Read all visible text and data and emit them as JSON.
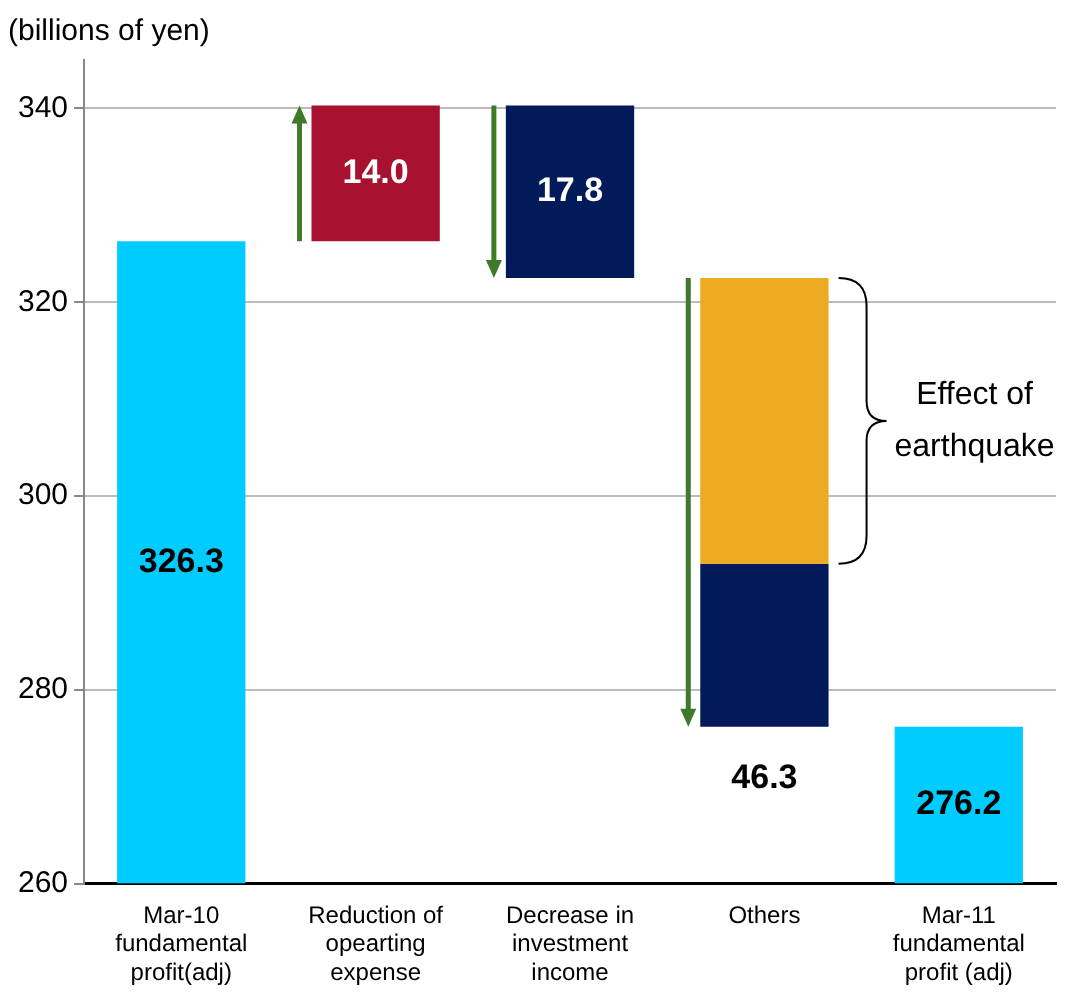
{
  "chart_data": {
    "type": "bar",
    "ylabel": "(billions of yen)",
    "categories": [
      "Mar-10\nfundamental\nprofit(adj)",
      "Reduction of\nopearting\nexpense",
      "Decrease in\ninvestment\nincome",
      "Others",
      "Mar-11\nfundamental\nprofit (adj)"
    ],
    "series": [
      {
        "colors": [
          "#00ccff",
          "#a8112f",
          "#001a5a",
          null,
          "#00ccff"
        ],
        "base": [
          260,
          326.3,
          340.3,
          null,
          260
        ],
        "values": [
          66.3,
          14.0,
          -17.8,
          null,
          16.2
        ],
        "value_labels": [
          "326.3",
          "14.0",
          "17.8",
          null,
          "276.2"
        ]
      },
      {
        "color": "#eeaa20",
        "base": [
          null,
          null,
          null,
          322.5,
          null
        ],
        "values": [
          null,
          null,
          null,
          -29.5,
          null
        ]
      },
      {
        "color": "#001a5a",
        "base": [
          null,
          null,
          null,
          293.0,
          null
        ],
        "values": [
          null,
          null,
          null,
          -16.8,
          null
        ]
      }
    ],
    "ylim": [
      260,
      345
    ],
    "yticks": [
      260,
      280,
      300,
      320,
      340
    ],
    "grid": "y",
    "legend": false,
    "annotations": [
      {
        "text": "46.3",
        "x": "Others",
        "y": 276.2
      },
      "Effect of earthquake"
    ]
  }
}
